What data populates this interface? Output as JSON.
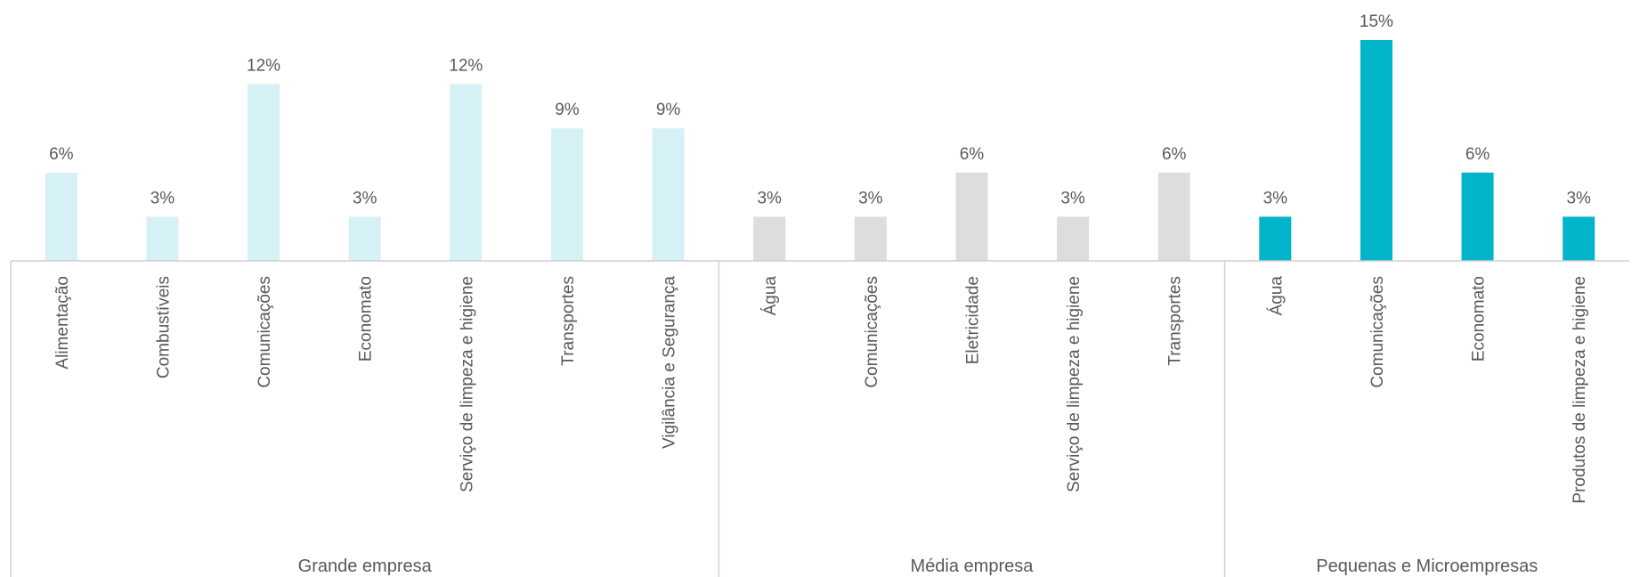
{
  "chart_data": {
    "type": "bar",
    "value_suffix": "%",
    "ylim": [
      0,
      15
    ],
    "grid": false,
    "groups": [
      {
        "name": "Grande empresa",
        "color": "#D5F1F5",
        "categories": [
          "Alimentação",
          "Combustíveis",
          "Comunicações",
          "Economato",
          "Serviço de limpeza e higiene",
          "Transportes",
          "Vigilância e Segurança"
        ],
        "values": [
          6,
          3,
          12,
          3,
          12,
          9,
          9
        ]
      },
      {
        "name": "Média empresa",
        "color": "#DDDDDD",
        "categories": [
          "Água",
          "Comunicações",
          "Eletricidade",
          "Serviço de limpeza e higiene",
          "Transportes"
        ],
        "values": [
          3,
          3,
          6,
          3,
          6
        ]
      },
      {
        "name": "Pequenas e Microempresas",
        "color": "#00B5CA",
        "categories": [
          "Água",
          "Comunicações",
          "Economato",
          "Produtos de limpeza e higiene"
        ],
        "values": [
          3,
          15,
          6,
          3
        ]
      }
    ]
  }
}
